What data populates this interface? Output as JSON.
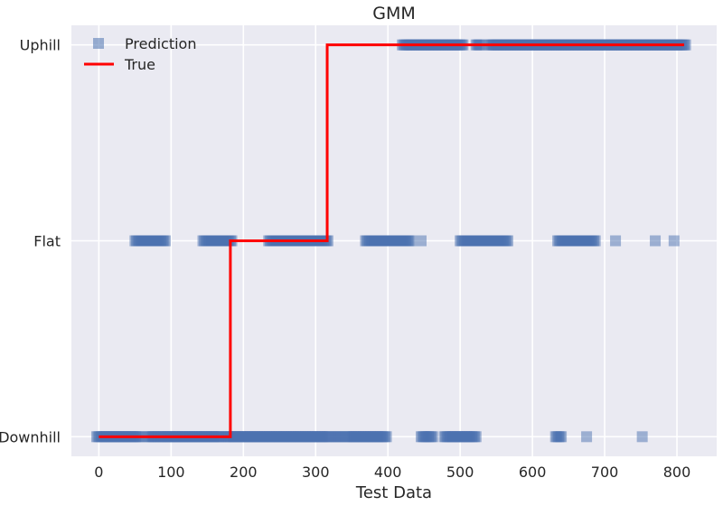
{
  "chart_data": {
    "type": "scatter",
    "title": "GMM",
    "xlabel": "Test Data",
    "ylabel": "",
    "xlim": [
      -38,
      855
    ],
    "ylim": [
      -0.1,
      2.1
    ],
    "grid": true,
    "legend_position": "top-left",
    "categories": [
      "Downhill",
      "Flat",
      "Uphill"
    ],
    "x_ticks": [
      0,
      100,
      200,
      300,
      400,
      500,
      600,
      700,
      800
    ],
    "colors": {
      "background": "#eaeaf2",
      "grid": "#ffffff",
      "prediction": "#4c72b0",
      "true": "#ff0000"
    },
    "series": [
      {
        "name": "Prediction",
        "kind": "marker-runs",
        "marker": "square",
        "ranges": [
          {
            "level": 0,
            "x": [
              -3,
              58
            ]
          },
          {
            "level": 0,
            "x": [
              68,
              78
            ]
          },
          {
            "level": 0,
            "x": [
              82,
              170
            ]
          },
          {
            "level": 0,
            "x": [
              176,
              320
            ]
          },
          {
            "level": 0,
            "x": [
              327,
              335
            ]
          },
          {
            "level": 0,
            "x": [
              342,
              398
            ]
          },
          {
            "level": 0,
            "x": [
              446,
              463
            ]
          },
          {
            "level": 0,
            "x": [
              478,
              522
            ]
          },
          {
            "level": 0,
            "x": [
              632,
              640
            ]
          },
          {
            "level": 0,
            "x": [
              675,
              675
            ]
          },
          {
            "level": 0,
            "x": [
              752,
              752
            ]
          },
          {
            "level": 1,
            "x": [
              50,
              92
            ]
          },
          {
            "level": 1,
            "x": [
              144,
              185
            ]
          },
          {
            "level": 1,
            "x": [
              235,
              318
            ]
          },
          {
            "level": 1,
            "x": [
              369,
              432
            ]
          },
          {
            "level": 1,
            "x": [
              446,
              446
            ]
          },
          {
            "level": 1,
            "x": [
              500,
              566
            ]
          },
          {
            "level": 1,
            "x": [
              635,
              688
            ]
          },
          {
            "level": 1,
            "x": [
              715,
              715
            ]
          },
          {
            "level": 1,
            "x": [
              770,
              770
            ]
          },
          {
            "level": 1,
            "x": [
              796,
              796
            ]
          },
          {
            "level": 2,
            "x": [
              420,
              505
            ]
          },
          {
            "level": 2,
            "x": [
              522,
              528
            ]
          },
          {
            "level": 2,
            "x": [
              540,
              813
            ]
          }
        ]
      },
      {
        "name": "True",
        "kind": "step",
        "points": [
          [
            0,
            0
          ],
          [
            182,
            0
          ],
          [
            182,
            1
          ],
          [
            316,
            1
          ],
          [
            316,
            2
          ],
          [
            810,
            2
          ]
        ]
      }
    ]
  }
}
